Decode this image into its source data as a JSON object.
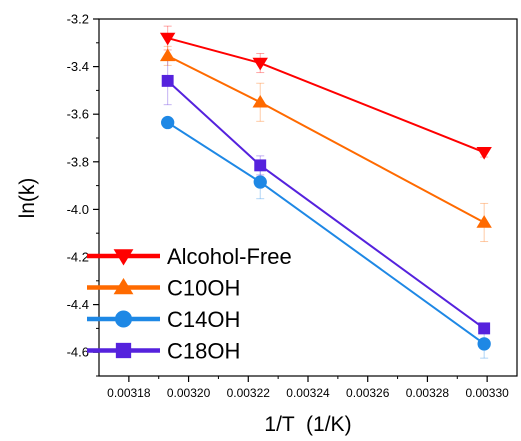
{
  "chart_data": {
    "type": "line",
    "xlabel": "1/T  (1/K)",
    "ylabel": "ln(k)",
    "xlim": [
      0.00317,
      0.00331
    ],
    "ylim": [
      -4.7,
      -3.2
    ],
    "xticks": [
      0.00318,
      0.0032,
      0.00322,
      0.00324,
      0.00326,
      0.00328,
      0.0033
    ],
    "xtick_labels": [
      "0.00318",
      "0.00320",
      "0.00322",
      "0.00324",
      "0.00326",
      "0.00328",
      "0.00330"
    ],
    "yticks": [
      -4.6,
      -4.4,
      -4.2,
      -4.0,
      -3.8,
      -3.6,
      -3.4,
      -3.2
    ],
    "ytick_labels": [
      "-4.6",
      "-4.4",
      "-4.2",
      "-4.0",
      "-3.8",
      "-3.6",
      "-3.4",
      "-3.2"
    ],
    "grid": false,
    "legend_position": "bottom-left",
    "series": [
      {
        "name": "Alcohol-Free",
        "color": "#ff0000",
        "marker": "triangle-down",
        "x": [
          0.003193,
          0.003224,
          0.003299
        ],
        "y": [
          -3.28,
          -3.385,
          -3.76
        ],
        "err": [
          0.05,
          0.04,
          0.02
        ]
      },
      {
        "name": "C10OH",
        "color": "#ff6a00",
        "marker": "triangle-up",
        "x": [
          0.003193,
          0.003224,
          0.003299
        ],
        "y": [
          -3.355,
          -3.55,
          -4.055
        ],
        "err": [
          0.04,
          0.08,
          0.08
        ]
      },
      {
        "name": "C14OH",
        "color": "#1e88e5",
        "marker": "circle",
        "x": [
          0.003193,
          0.003224,
          0.003299
        ],
        "y": [
          -3.635,
          -3.885,
          -4.565
        ],
        "err": [
          0.02,
          0.07,
          0.06
        ]
      },
      {
        "name": "C18OH",
        "color": "#5522dd",
        "marker": "square",
        "x": [
          0.003193,
          0.003224,
          0.003299
        ],
        "y": [
          -3.46,
          -3.815,
          -4.5
        ],
        "err": [
          0.1,
          0.04,
          0.02
        ]
      }
    ]
  }
}
